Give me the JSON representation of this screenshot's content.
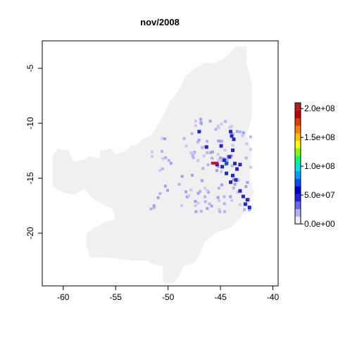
{
  "title": "nov/2008",
  "map": {
    "xlim": [
      -62,
      -39.5
    ],
    "ylim": [
      -24.8,
      -2.5
    ],
    "background_color": "#f0f0f0",
    "xticks": [
      {
        "value": -60,
        "label": "-60"
      },
      {
        "value": -55,
        "label": "-55"
      },
      {
        "value": -50,
        "label": "-50"
      },
      {
        "value": -45,
        "label": "-45"
      },
      {
        "value": -40,
        "label": "-40"
      }
    ],
    "yticks": [
      {
        "value": -5,
        "label": "-5"
      },
      {
        "value": -10,
        "label": "-10"
      },
      {
        "value": -15,
        "label": "-15"
      },
      {
        "value": -20,
        "label": "-20"
      }
    ],
    "region_polygon": [
      [
        -43.5,
        -3.0
      ],
      [
        -42.5,
        -3.0
      ],
      [
        -42.5,
        -4.5
      ],
      [
        -42.0,
        -6.5
      ],
      [
        -42.0,
        -9.5
      ],
      [
        -42.5,
        -11.0
      ],
      [
        -42.0,
        -12.5
      ],
      [
        -42.2,
        -15.0
      ],
      [
        -41.8,
        -16.3
      ],
      [
        -42.3,
        -17.5
      ],
      [
        -43.0,
        -18.5
      ],
      [
        -44.0,
        -19.5
      ],
      [
        -45.5,
        -20.0
      ],
      [
        -46.5,
        -20.8
      ],
      [
        -47.0,
        -22.0
      ],
      [
        -47.5,
        -22.7
      ],
      [
        -48.5,
        -23.0
      ],
      [
        -49.0,
        -24.0
      ],
      [
        -49.5,
        -24.6
      ],
      [
        -50.5,
        -24.4
      ],
      [
        -50.5,
        -23.0
      ],
      [
        -51.5,
        -22.8
      ],
      [
        -52.0,
        -22.5
      ],
      [
        -53.5,
        -22.5
      ],
      [
        -55.0,
        -22.3
      ],
      [
        -56.0,
        -22.2
      ],
      [
        -57.5,
        -22.2
      ],
      [
        -57.8,
        -21.0
      ],
      [
        -57.8,
        -20.0
      ],
      [
        -57.0,
        -19.5
      ],
      [
        -56.0,
        -19.0
      ],
      [
        -55.0,
        -18.7
      ],
      [
        -55.3,
        -17.8
      ],
      [
        -56.0,
        -17.5
      ],
      [
        -57.0,
        -17.0
      ],
      [
        -57.5,
        -16.5
      ],
      [
        -58.0,
        -16.0
      ],
      [
        -59.0,
        -16.5
      ],
      [
        -60.0,
        -16.3
      ],
      [
        -61.0,
        -15.8
      ],
      [
        -61.0,
        -13.0
      ],
      [
        -60.5,
        -12.3
      ],
      [
        -59.5,
        -12.5
      ],
      [
        -59.0,
        -13.5
      ],
      [
        -58.0,
        -13.3
      ],
      [
        -57.5,
        -13.0
      ],
      [
        -56.5,
        -13.2
      ],
      [
        -56.5,
        -12.5
      ],
      [
        -55.5,
        -12.3
      ],
      [
        -55.0,
        -12.8
      ],
      [
        -54.0,
        -12.5
      ],
      [
        -53.5,
        -12.0
      ],
      [
        -53.0,
        -12.0
      ],
      [
        -52.5,
        -11.5
      ],
      [
        -51.5,
        -11.0
      ],
      [
        -51.0,
        -10.2
      ],
      [
        -50.3,
        -9.0
      ],
      [
        -49.8,
        -8.0
      ],
      [
        -49.0,
        -7.0
      ],
      [
        -48.3,
        -5.7
      ],
      [
        -47.5,
        -5.0
      ],
      [
        -46.5,
        -4.5
      ],
      [
        -45.5,
        -4.5
      ],
      [
        -44.5,
        -4.0
      ]
    ],
    "high_cells_blue": [
      [
        -47.2,
        -10.6
      ],
      [
        -45.1,
        -11.9
      ],
      [
        -44.1,
        -11.0
      ],
      [
        -44.2,
        -10.6
      ],
      [
        -43.9,
        -11.3
      ],
      [
        -44.0,
        -12.3
      ],
      [
        -43.8,
        -13.5
      ],
      [
        -43.6,
        -14.0
      ],
      [
        -45.0,
        -13.8
      ],
      [
        -44.6,
        -14.4
      ],
      [
        -44.8,
        -13.2
      ],
      [
        -43.3,
        -13.6
      ],
      [
        -44.3,
        -12.9
      ],
      [
        -46.5,
        -12.0
      ],
      [
        -43.0,
        -16.5
      ],
      [
        -42.6,
        -16.8
      ],
      [
        -42.8,
        -17.2
      ],
      [
        -43.3,
        -16.0
      ],
      [
        -44.2,
        -15.2
      ],
      [
        -45.5,
        -13.6
      ],
      [
        -44.0,
        -14.6
      ],
      [
        -43.7,
        -15.0
      ],
      [
        -42.4,
        -17.5
      ]
    ],
    "high_cells_red": [
      [
        -45.9,
        -13.5
      ],
      [
        -45.6,
        -13.5
      ]
    ],
    "high_cells_teal": [
      [
        -44.6,
        -13.5
      ]
    ]
  },
  "legend": {
    "title": "",
    "min": 0,
    "max": 210000000,
    "colors": [
      "#f0f0f0",
      "#b3b3f5",
      "#6a6af0",
      "#2323e6",
      "#0000c8",
      "#0050ff",
      "#00a0ff",
      "#00e0e0",
      "#00ff80",
      "#80ff00",
      "#ffff00",
      "#ffc000",
      "#ff8000",
      "#e04000",
      "#c00000",
      "#b22222"
    ],
    "labels": [
      {
        "value": 0,
        "label": "0.0e+00"
      },
      {
        "value": 50000000,
        "label": "5.0e+07"
      },
      {
        "value": 100000000,
        "label": "1.0e+08"
      },
      {
        "value": 150000000,
        "label": "1.5e+08"
      },
      {
        "value": 200000000,
        "label": "2.0e+08"
      }
    ]
  }
}
